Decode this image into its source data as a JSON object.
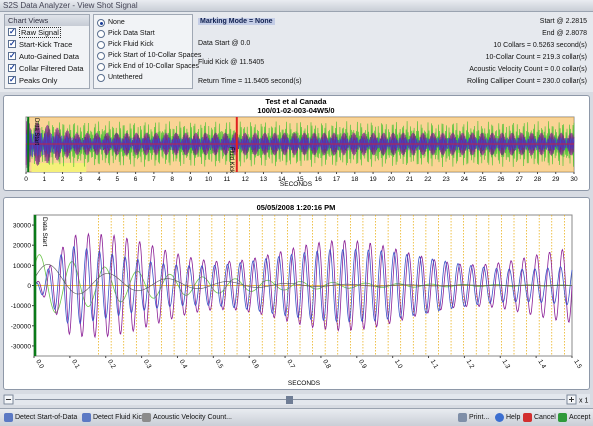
{
  "window": {
    "title": "S2S Data Analyzer - View Shot Signal"
  },
  "chart_views": {
    "header": "Chart Views",
    "items": [
      {
        "label": "Raw Signal",
        "checked": true
      },
      {
        "label": "Start-Kick Trace",
        "checked": true
      },
      {
        "label": "Auto-Gained Data",
        "checked": true
      },
      {
        "label": "Collar Filtered Data",
        "checked": true
      },
      {
        "label": "Peaks Only",
        "checked": true
      }
    ]
  },
  "marking_options": [
    {
      "label": "None",
      "selected": true
    },
    {
      "label": "Pick Data Start",
      "selected": false
    },
    {
      "label": "Pick Fluid Kick",
      "selected": false
    },
    {
      "label": "Pick Start of 10-Collar Spaces",
      "selected": false
    },
    {
      "label": "Pick End of 10-Collar Spaces",
      "selected": false
    },
    {
      "label": "Untethered",
      "selected": false
    }
  ],
  "info_left": {
    "marking_mode": "Marking Mode = None",
    "data_start": "Data Start @ 0.0",
    "fluid_kick": "Fluid Kick @ 11.5405",
    "return_time": "Return Time = 11.5405 second(s)"
  },
  "info_right": {
    "start": "Start @ 2.2815",
    "end": "End @ 2.8078",
    "collars": "10 Collars = 0.5263 second(s)",
    "collar_count": "10-Collar Count = 219.3 collar(s)",
    "acoustic_velocity": "Acoustic Velocity Count = 0.0 collar(s)",
    "rolling_calliper": "Rolling Calliper Count = 230.0 collar(s)"
  },
  "overview_chart": {
    "title1": "Test et al Canada",
    "title2": "100/01-02-003-04W5/0",
    "xlabel": "SECONDS",
    "x_ticks": [
      "0",
      "1",
      "2",
      "3",
      "4",
      "5",
      "6",
      "7",
      "8",
      "9",
      "10",
      "11",
      "12",
      "13",
      "14",
      "15",
      "16",
      "17",
      "18",
      "19",
      "20",
      "21",
      "22",
      "23",
      "24",
      "25",
      "26",
      "27",
      "28",
      "29",
      "30"
    ],
    "marker_data_start": "Data Start",
    "marker_fluid_kick": "Fluid Kick",
    "colors": {
      "orange_band": "#f5b040",
      "green": "#39c12a",
      "purple": "#7a1a8c",
      "blue": "#3b4fc8",
      "red": "#e02020",
      "yellow": "#f5f07a"
    }
  },
  "detail_chart": {
    "title": "05/05/2008 1:20:16 PM",
    "xlabel": "SECONDS",
    "y_ticks": [
      "30000",
      "20000",
      "10000",
      "0",
      "-10000",
      "-20000",
      "-30000"
    ],
    "x_ticks": [
      "0.0",
      "0.1",
      "0.2",
      "0.3",
      "0.4",
      "0.5",
      "0.6",
      "0.7",
      "0.8",
      "0.9",
      "1.0",
      "1.1",
      "1.2",
      "1.3",
      "1.4",
      "1.5"
    ],
    "marker_data_start": "Data Start",
    "ylim": [
      -35000,
      35000
    ],
    "xlim": [
      0,
      1.5
    ]
  },
  "zoom": {
    "label": "x 1"
  },
  "statusbar": {
    "detect_start": "Detect Start-of-Data",
    "detect_kick": "Detect Fluid Kick",
    "acoustic": "Acoustic Velocity Count...",
    "print": "Print...",
    "help": "Help",
    "cancel": "Cancel",
    "accept": "Accept"
  }
}
